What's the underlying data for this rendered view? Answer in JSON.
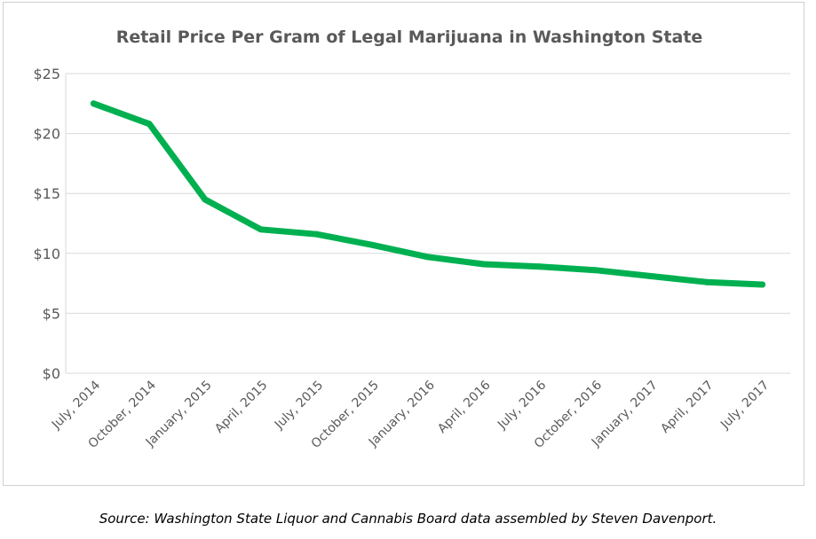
{
  "chart_data": {
    "type": "line",
    "title": "Retail Price Per Gram of Legal Marijuana in Washington State",
    "xlabel": "",
    "ylabel": "",
    "categories": [
      "July,  2014",
      "October, 2014",
      "January, 2015",
      "April,  2015",
      "July,  2015",
      "October, 2015",
      "January, 2016",
      "April,  2016",
      "July,  2016",
      "October, 2016",
      "January, 2017",
      "April,  2017",
      "July,  2017"
    ],
    "series": [
      {
        "name": "Retail price per gram",
        "values": [
          22.5,
          20.8,
          14.5,
          12.0,
          11.6,
          10.7,
          9.7,
          9.1,
          8.9,
          8.6,
          8.1,
          7.6,
          7.4
        ],
        "color": "#00b050"
      }
    ],
    "ylim": [
      0,
      25
    ],
    "yticks": [
      0,
      5,
      10,
      15,
      20,
      25
    ],
    "ytick_labels": [
      "$0",
      "$5",
      "$10",
      "$15",
      "$20",
      "$25"
    ],
    "grid": true,
    "legend": "none"
  },
  "caption": "Source: Washington State Liquor and Cannabis Board data assembled by Steven Davenport."
}
